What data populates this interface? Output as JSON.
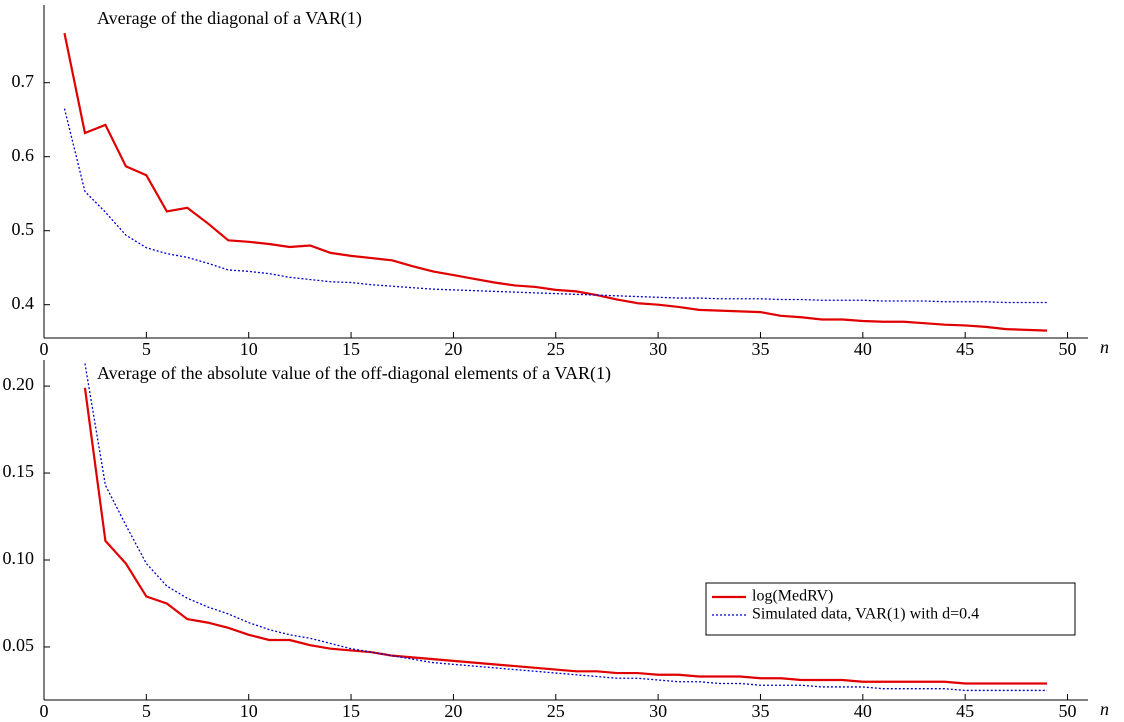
{
  "chart_data": [
    {
      "type": "line",
      "title": "Average of the diagonal of a VAR(1)",
      "xlabel": "n",
      "xlim": [
        0,
        51
      ],
      "ylim": [
        0.355,
        0.805
      ],
      "xticks": [
        0,
        5,
        10,
        15,
        20,
        25,
        30,
        35,
        40,
        45,
        50
      ],
      "yticks": [
        0.4,
        0.5,
        0.6,
        0.7
      ],
      "series": [
        {
          "name": "log(MedRV)",
          "color": "#e00000",
          "linestyle": "solid",
          "x": [
            1,
            2,
            3,
            4,
            5,
            6,
            7,
            8,
            9,
            10,
            11,
            12,
            13,
            14,
            15,
            16,
            17,
            18,
            19,
            20,
            21,
            22,
            23,
            24,
            25,
            26,
            27,
            28,
            29,
            30,
            31,
            32,
            33,
            34,
            35,
            36,
            37,
            38,
            39,
            40,
            41,
            42,
            43,
            44,
            45,
            46,
            47,
            48,
            49
          ],
          "values": [
            0.767,
            0.632,
            0.643,
            0.587,
            0.575,
            0.526,
            0.531,
            0.51,
            0.487,
            0.485,
            0.482,
            0.478,
            0.48,
            0.47,
            0.466,
            0.463,
            0.46,
            0.452,
            0.445,
            0.44,
            0.435,
            0.43,
            0.426,
            0.424,
            0.42,
            0.418,
            0.413,
            0.407,
            0.402,
            0.4,
            0.397,
            0.393,
            0.392,
            0.391,
            0.39,
            0.385,
            0.383,
            0.38,
            0.38,
            0.378,
            0.377,
            0.377,
            0.375,
            0.373,
            0.372,
            0.37,
            0.367,
            0.366,
            0.365
          ]
        },
        {
          "name": "Simulated data, VAR(1) with d=0.4",
          "color": "#0000cc",
          "linestyle": "dotted",
          "x": [
            1,
            2,
            3,
            4,
            5,
            6,
            7,
            8,
            9,
            10,
            11,
            12,
            13,
            14,
            15,
            16,
            17,
            18,
            19,
            20,
            21,
            22,
            23,
            24,
            25,
            26,
            27,
            28,
            29,
            30,
            31,
            32,
            33,
            34,
            35,
            36,
            37,
            38,
            39,
            40,
            41,
            42,
            43,
            44,
            45,
            46,
            47,
            48,
            49
          ],
          "values": [
            0.665,
            0.553,
            0.525,
            0.494,
            0.477,
            0.469,
            0.464,
            0.456,
            0.447,
            0.445,
            0.442,
            0.437,
            0.434,
            0.431,
            0.43,
            0.427,
            0.425,
            0.423,
            0.421,
            0.42,
            0.419,
            0.418,
            0.417,
            0.416,
            0.415,
            0.414,
            0.413,
            0.412,
            0.411,
            0.41,
            0.409,
            0.409,
            0.408,
            0.408,
            0.408,
            0.407,
            0.407,
            0.406,
            0.406,
            0.406,
            0.405,
            0.405,
            0.405,
            0.404,
            0.404,
            0.404,
            0.403,
            0.403,
            0.403
          ]
        }
      ]
    },
    {
      "type": "line",
      "title": "Average of the absolute value of the off-diagonal elements of a VAR(1)",
      "xlabel": "n",
      "xlim": [
        0,
        51
      ],
      "ylim": [
        0.0195,
        0.215
      ],
      "xticks": [
        0,
        5,
        10,
        15,
        20,
        25,
        30,
        35,
        40,
        45,
        50
      ],
      "yticks": [
        0.05,
        {
          "value": 0.1,
          "label": "0.10"
        },
        0.15,
        {
          "value": 0.2,
          "label": "0.20"
        }
      ],
      "legend": "right",
      "series": [
        {
          "name": "log(MedRV)",
          "color": "#e00000",
          "linestyle": "solid",
          "x": [
            2,
            3,
            4,
            5,
            6,
            7,
            8,
            9,
            10,
            11,
            12,
            13,
            14,
            15,
            16,
            17,
            18,
            19,
            20,
            21,
            22,
            23,
            24,
            25,
            26,
            27,
            28,
            29,
            30,
            31,
            32,
            33,
            34,
            35,
            36,
            37,
            38,
            39,
            40,
            41,
            42,
            43,
            44,
            45,
            46,
            47,
            48,
            49
          ],
          "values": [
            0.199,
            0.111,
            0.098,
            0.079,
            0.075,
            0.066,
            0.064,
            0.061,
            0.057,
            0.054,
            0.054,
            0.051,
            0.049,
            0.048,
            0.047,
            0.045,
            0.044,
            0.043,
            0.042,
            0.041,
            0.04,
            0.039,
            0.038,
            0.037,
            0.036,
            0.036,
            0.035,
            0.035,
            0.034,
            0.034,
            0.033,
            0.033,
            0.033,
            0.032,
            0.032,
            0.031,
            0.031,
            0.031,
            0.03,
            0.03,
            0.03,
            0.03,
            0.03,
            0.029,
            0.029,
            0.029,
            0.029,
            0.029
          ]
        },
        {
          "name": "Simulated data, VAR(1) with d=0.4",
          "color": "#0000cc",
          "linestyle": "dotted",
          "x": [
            2,
            3,
            4,
            5,
            6,
            7,
            8,
            9,
            10,
            11,
            12,
            13,
            14,
            15,
            16,
            17,
            18,
            19,
            20,
            21,
            22,
            23,
            24,
            25,
            26,
            27,
            28,
            29,
            30,
            31,
            32,
            33,
            34,
            35,
            36,
            37,
            38,
            39,
            40,
            41,
            42,
            43,
            44,
            45,
            46,
            47,
            48,
            49
          ],
          "values": [
            0.213,
            0.143,
            0.12,
            0.098,
            0.085,
            0.078,
            0.073,
            0.069,
            0.064,
            0.06,
            0.057,
            0.055,
            0.052,
            0.049,
            0.047,
            0.045,
            0.043,
            0.041,
            0.04,
            0.039,
            0.038,
            0.037,
            0.036,
            0.035,
            0.034,
            0.033,
            0.032,
            0.032,
            0.031,
            0.03,
            0.03,
            0.029,
            0.029,
            0.028,
            0.028,
            0.028,
            0.027,
            0.027,
            0.027,
            0.026,
            0.026,
            0.026,
            0.026,
            0.025,
            0.025,
            0.025,
            0.025,
            0.025
          ]
        }
      ]
    }
  ]
}
